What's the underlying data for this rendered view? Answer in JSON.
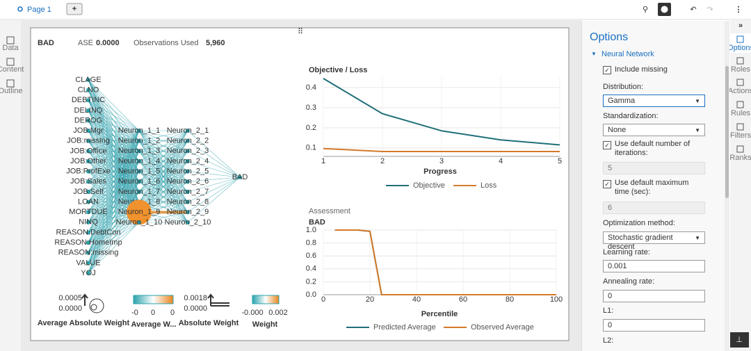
{
  "toolbar": {
    "page_tab": "Page 1"
  },
  "left_rail": [
    "Data",
    "Content",
    "Outline"
  ],
  "right_rail": [
    "Options",
    "Roles",
    "Actions",
    "Rules",
    "Filters",
    "Ranks"
  ],
  "header": {
    "target": "BAD",
    "ase_label": "ASE",
    "ase": "0.0000",
    "obs_label": "Observations Used",
    "obs": "5,960"
  },
  "network": {
    "inputs": [
      "CLAGE",
      "CLNO",
      "DEBTINC",
      "DELINQ",
      "DEROG",
      "JOB:Mgr",
      "JOB:missing",
      "JOB:Office",
      "JOB:Other",
      "JOB:ProfExe",
      "JOB:Sales",
      "JOB:Self",
      "LOAN",
      "MORTDUE",
      "NINQ",
      "REASON:DebtCon",
      "REASON:HomeImp",
      "REASON:missing",
      "VALUE",
      "YOJ"
    ],
    "hidden1": [
      "Neuron_1_1",
      "Neuron_1_2",
      "Neuron_1_3",
      "Neuron_1_4",
      "Neuron_1_5",
      "Neuron_1_6",
      "Neuron_1_7",
      "Neuron_1_8",
      "Neuron_1_9",
      "Neuron_1_10"
    ],
    "hidden2": [
      "Neuron_2_1",
      "Neuron_2_2",
      "Neuron_2_3",
      "Neuron_2_4",
      "Neuron_2_5",
      "Neuron_2_6",
      "Neuron_2_7",
      "Neuron_2_8",
      "Neuron_2_9",
      "Neuron_2_10"
    ],
    "output": "BAD"
  },
  "legends": [
    {
      "labels": [
        "0.0005",
        "0.0000"
      ],
      "title": "Average Absolute Weight"
    },
    {
      "labels": [
        "-0",
        "0",
        "0"
      ],
      "title": "Average W..."
    },
    {
      "labels": [
        "0.0018",
        "0.0000"
      ],
      "title": "Absolute Weight"
    },
    {
      "labels": [
        "-0.000",
        "0.002"
      ],
      "title": "Weight"
    }
  ],
  "chart_data": [
    {
      "type": "line",
      "title": "Objective / Loss",
      "xlabel": "Progress",
      "x": [
        1,
        2,
        3,
        4,
        5
      ],
      "xlim": [
        1,
        5
      ],
      "xticks": [
        1,
        2,
        3,
        4,
        5
      ],
      "ylim": [
        0.058,
        0.455
      ],
      "yticks": [
        0.1,
        0.2,
        0.3,
        0.4
      ],
      "grid": true,
      "series": [
        {
          "name": "Objective",
          "color": "#1f6e78",
          "values": [
            0.445,
            0.27,
            0.185,
            0.14,
            0.115
          ]
        },
        {
          "name": "Loss",
          "color": "#d4792a",
          "values": [
            0.097,
            0.082,
            0.082,
            0.082,
            0.082
          ]
        }
      ]
    },
    {
      "type": "line",
      "subtitle": "Assessment",
      "ylabel": "BAD",
      "xlabel": "Percentile",
      "x": [
        5,
        10,
        15,
        20,
        25,
        30,
        35,
        40,
        45,
        50,
        55,
        60,
        65,
        70,
        75,
        80,
        85,
        90,
        95,
        100
      ],
      "xlim": [
        0,
        100
      ],
      "xticks": [
        0,
        20,
        40,
        60,
        80,
        100
      ],
      "ylim": [
        0,
        1
      ],
      "yticks": [
        {
          "value": 0,
          "label": "0.0"
        },
        {
          "value": 0.2,
          "label": "0.2"
        },
        {
          "value": 0.4,
          "label": "0.4"
        },
        {
          "value": 0.6,
          "label": "0.6"
        },
        {
          "value": 0.8,
          "label": "0.8"
        },
        {
          "value": 1,
          "label": "1.0"
        }
      ],
      "grid": true,
      "series": [
        {
          "name": "Predicted Average",
          "color": "#1f6e78",
          "values": [
            1,
            1,
            1,
            0.98,
            0,
            0,
            0,
            0,
            0,
            0,
            0,
            0,
            0,
            0,
            0,
            0,
            0,
            0,
            0,
            0
          ]
        },
        {
          "name": "Observed Average",
          "color": "#d4792a",
          "values": [
            1,
            1,
            1,
            0.98,
            0,
            0,
            0,
            0,
            0,
            0,
            0,
            0,
            0,
            0,
            0,
            0,
            0,
            0,
            0,
            0
          ]
        }
      ]
    }
  ],
  "options": {
    "title": "Options",
    "section": "Neural Network",
    "include_missing": "Include missing",
    "distribution_label": "Distribution:",
    "distribution": "Gamma",
    "standardization_label": "Standardization:",
    "standardization": "None",
    "iterations_check": "Use default number of iterations:",
    "iterations": "5",
    "max_time_check": "Use default maximum time (sec):",
    "max_time": "6",
    "optimization_label": "Optimization method:",
    "optimization": "Stochastic gradient descent",
    "learning_rate_label": "Learning rate:",
    "learning_rate": "0.001",
    "annealing_label": "Annealing rate:",
    "annealing": "0",
    "l1_label": "L1:",
    "l1": "0",
    "l2_label": "L2:"
  }
}
